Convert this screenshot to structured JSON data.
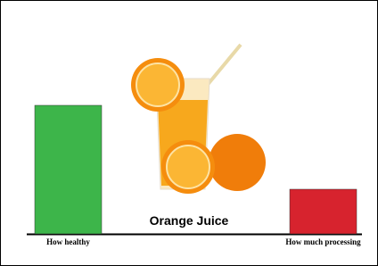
{
  "chart_data": {
    "type": "bar",
    "title": "Orange Juice",
    "categories": [
      "How healthy",
      "How much processing"
    ],
    "values": [
      72,
      25
    ],
    "colors": [
      "#3db54a",
      "#d7232e"
    ]
  }
}
